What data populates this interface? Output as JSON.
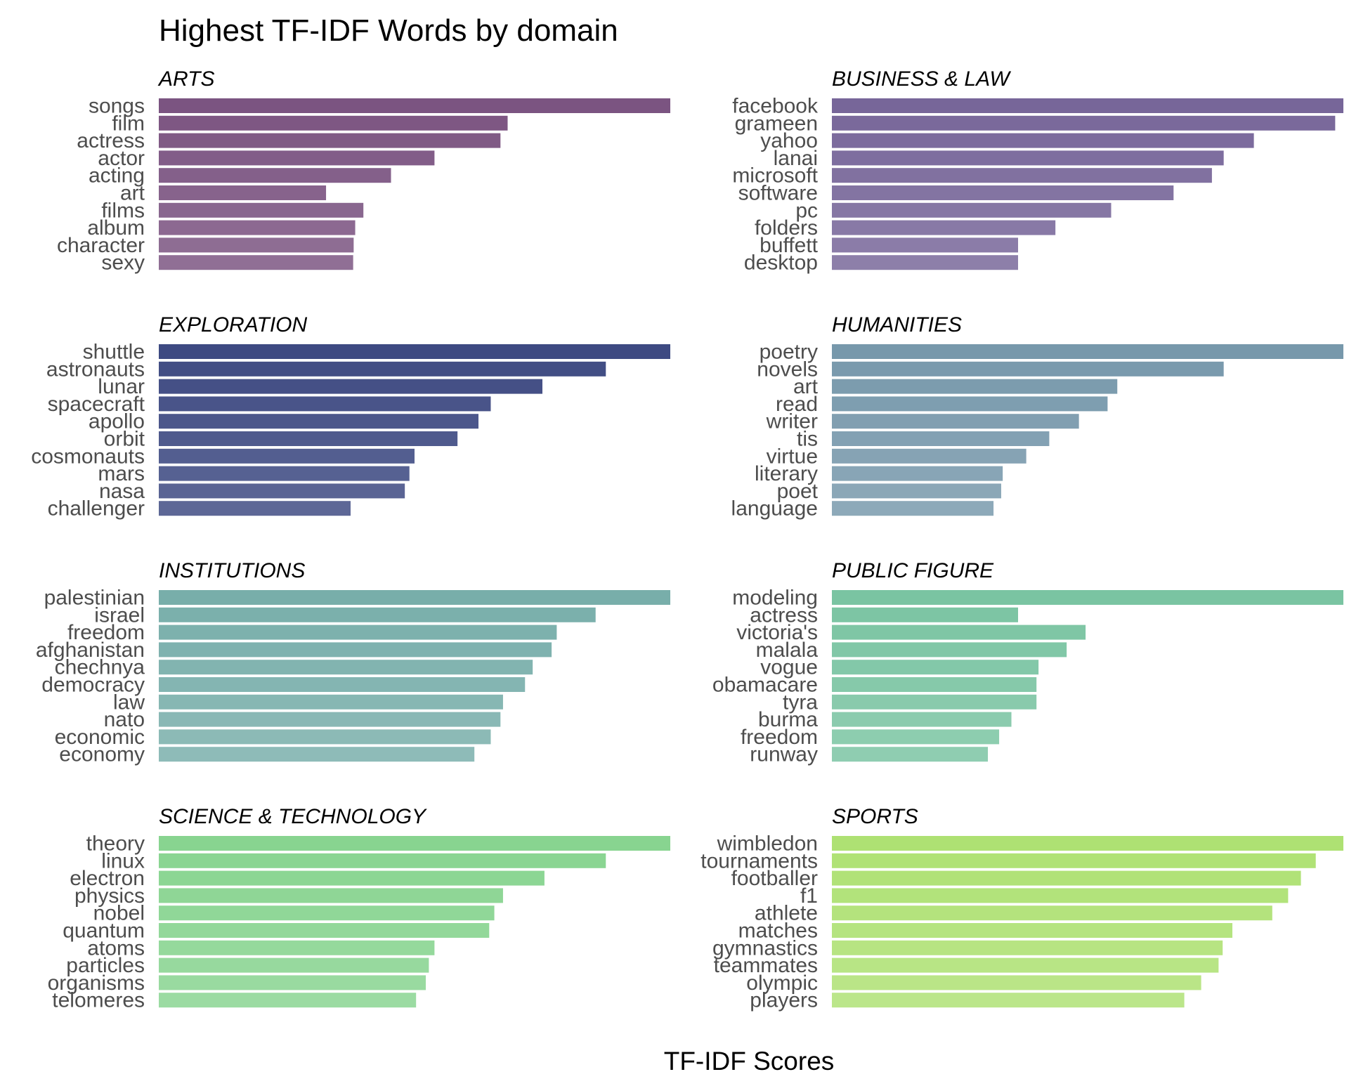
{
  "chart_data": {
    "type": "bar",
    "orientation": "horizontal",
    "title": "Highest TF-IDF Words by domain",
    "xlabel": "TF-IDF Scores",
    "ylabel": "",
    "grid": false,
    "legend": "none",
    "facet_columns": 2,
    "panels": [
      {
        "name": "ARTS",
        "color": "#7B5481",
        "categories": [
          "songs",
          "film",
          "actress",
          "actor",
          "acting",
          "art",
          "films",
          "album",
          "character",
          "sexy"
        ],
        "values": [
          1.0,
          0.682,
          0.668,
          0.539,
          0.454,
          0.327,
          0.4,
          0.384,
          0.381,
          0.38
        ]
      },
      {
        "name": "BUSINESS & LAW",
        "color": "#776699",
        "categories": [
          "facebook",
          "grameen",
          "yahoo",
          "lanai",
          "microsoft",
          "software",
          "pc",
          "folders",
          "buffett",
          "desktop"
        ],
        "values": [
          1.0,
          0.984,
          0.825,
          0.766,
          0.743,
          0.668,
          0.546,
          0.437,
          0.364,
          0.364
        ]
      },
      {
        "name": "EXPLORATION",
        "color": "#3E4A82",
        "categories": [
          "shuttle",
          "astronauts",
          "lunar",
          "spacecraft",
          "apollo",
          "orbit",
          "cosmonauts",
          "mars",
          "nasa",
          "challenger"
        ],
        "values": [
          1.0,
          0.874,
          0.75,
          0.649,
          0.625,
          0.584,
          0.5,
          0.49,
          0.481,
          0.375
        ]
      },
      {
        "name": "HUMANITIES",
        "color": "#7798AB",
        "categories": [
          "poetry",
          "novels",
          "art",
          "read",
          "writer",
          "tis",
          "virtue",
          "literary",
          "poet",
          "language"
        ],
        "values": [
          1.0,
          0.766,
          0.558,
          0.539,
          0.483,
          0.425,
          0.38,
          0.334,
          0.331,
          0.316
        ]
      },
      {
        "name": "INSTITUTIONS",
        "color": "#78AEAA",
        "categories": [
          "palestinian",
          "israel",
          "freedom",
          "afghanistan",
          "chechnya",
          "democracy",
          "law",
          "nato",
          "economic",
          "economy"
        ],
        "values": [
          1.0,
          0.854,
          0.778,
          0.768,
          0.731,
          0.716,
          0.673,
          0.668,
          0.649,
          0.617
        ]
      },
      {
        "name": "PUBLIC FIGURE",
        "color": "#7AC4A2",
        "categories": [
          "modeling",
          "actress",
          "victoria's",
          "malala",
          "vogue",
          "obamacare",
          "tyra",
          "burma",
          "freedom",
          "runway"
        ],
        "values": [
          1.0,
          0.364,
          0.496,
          0.459,
          0.404,
          0.4,
          0.4,
          0.351,
          0.327,
          0.305
        ]
      },
      {
        "name": "SCIENCE & TECHNOLOGY",
        "color": "#88D490",
        "categories": [
          "theory",
          "linux",
          "electron",
          "physics",
          "nobel",
          "quantum",
          "atoms",
          "particles",
          "organisms",
          "telomeres"
        ],
        "values": [
          1.0,
          0.874,
          0.754,
          0.673,
          0.656,
          0.646,
          0.539,
          0.528,
          0.522,
          0.503
        ]
      },
      {
        "name": "SPORTS",
        "color": "#AEE173",
        "categories": [
          "wimbledon",
          "tournaments",
          "footballer",
          "f1",
          "athlete",
          "matches",
          "gymnastics",
          "teammates",
          "olympic",
          "players"
        ],
        "values": [
          1.0,
          0.946,
          0.917,
          0.892,
          0.861,
          0.783,
          0.764,
          0.756,
          0.722,
          0.689
        ]
      }
    ]
  }
}
